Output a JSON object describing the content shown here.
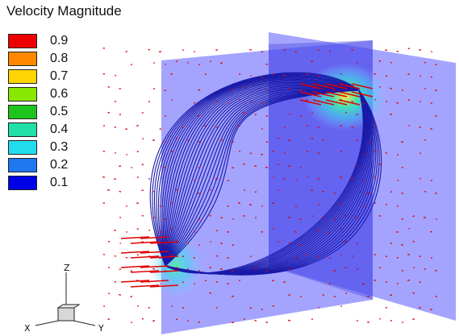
{
  "legend": {
    "title": "Velocity Magnitude",
    "levels": [
      {
        "label": "0.9",
        "color": "#ee0000"
      },
      {
        "label": "0.8",
        "color": "#ff8800"
      },
      {
        "label": "0.7",
        "color": "#ffd400"
      },
      {
        "label": "0.6",
        "color": "#88e800"
      },
      {
        "label": "0.5",
        "color": "#1ec41e"
      },
      {
        "label": "0.4",
        "color": "#22e0a8"
      },
      {
        "label": "0.3",
        "color": "#22dcee"
      },
      {
        "label": "0.2",
        "color": "#1e78f0"
      },
      {
        "label": "0.1",
        "color": "#0000e6"
      }
    ]
  },
  "axes_triad": {
    "z_label": "Z",
    "x_label": "X",
    "y_label": "Y"
  },
  "colors": {
    "plane_fill": "#5050ff",
    "streamline": "#1a1aa8",
    "vector": "#e00000",
    "hot_spot": "#30e0d0"
  }
}
